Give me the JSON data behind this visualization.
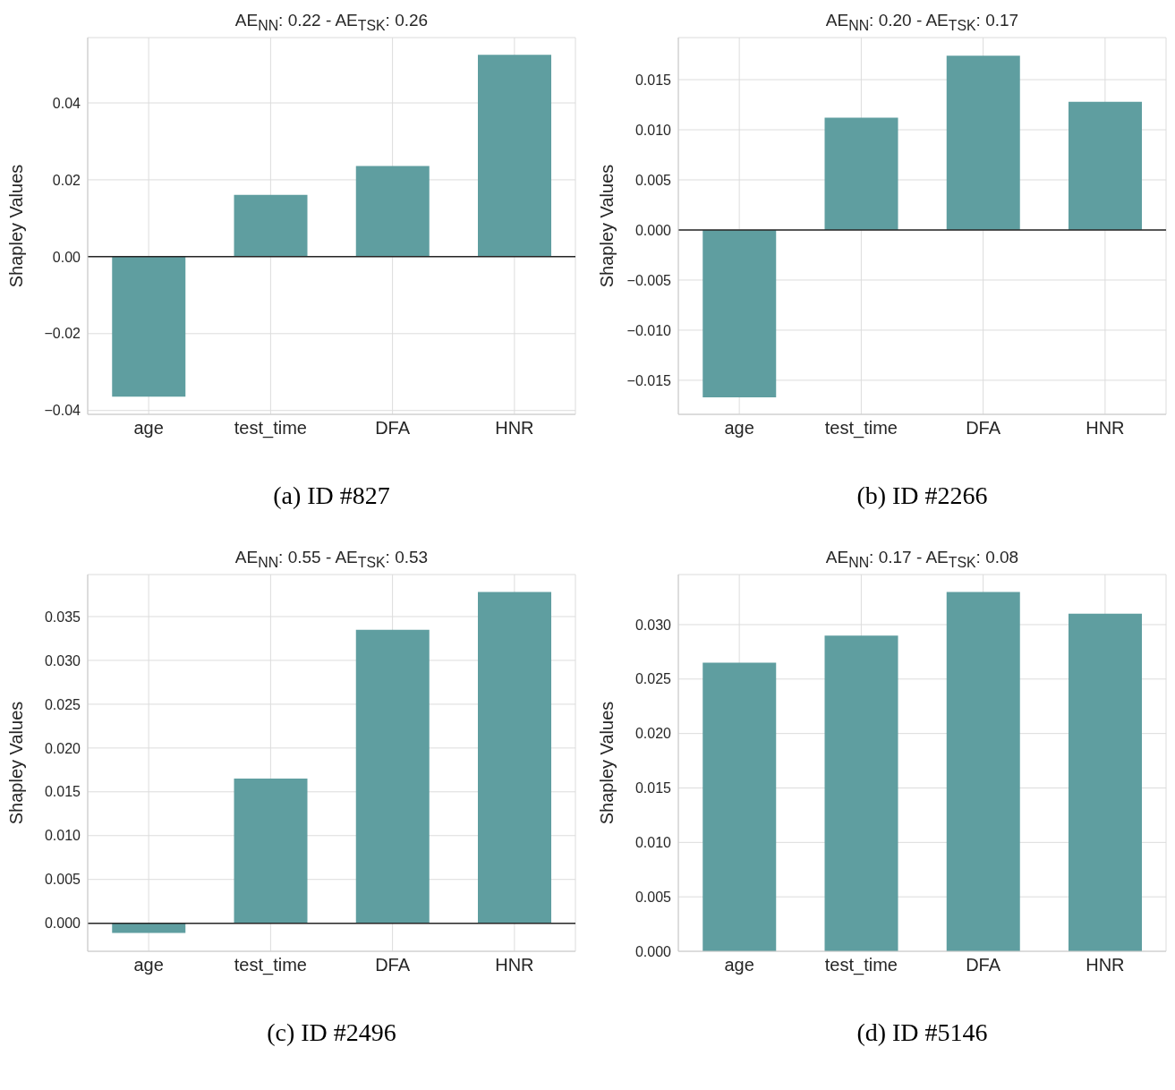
{
  "chart_data": [
    {
      "type": "bar",
      "title": "AE$_{NN}$: 0.22 - AE$_{TSK}$: 0.26",
      "ylabel": "Shapley Values",
      "annotations": [
        "(a) ID #827"
      ],
      "categories": [
        "age",
        "test_time",
        "DFA",
        "HNR"
      ],
      "values": [
        -0.0364,
        0.0161,
        0.0236,
        0.0525
      ],
      "color": "#5f9ea0",
      "ylim": [
        -0.041,
        0.057
      ],
      "yticks": [
        {
          "value": -0.04,
          "label": "−0.04"
        },
        {
          "value": -0.02,
          "label": "−0.02"
        },
        {
          "value": 0,
          "label": "0.00"
        },
        0.02,
        0.04
      ],
      "grid": true,
      "ref_lines": [
        {
          "axis": "y",
          "value": 0,
          "color": "#262626"
        }
      ]
    },
    {
      "type": "bar",
      "title": "AE$_{NN}$: 0.20 - AE$_{TSK}$: 0.17",
      "ylabel": "Shapley Values",
      "annotations": [
        "(b) ID #2266"
      ],
      "categories": [
        "age",
        "test_time",
        "DFA",
        "HNR"
      ],
      "values": [
        -0.0167,
        0.0112,
        0.0174,
        0.0128
      ],
      "color": "#5f9ea0",
      "ylim": [
        -0.0184,
        0.0192
      ],
      "yticks": [
        {
          "value": -0.015,
          "label": "−0.015"
        },
        {
          "value": -0.01,
          "label": "−0.010"
        },
        {
          "value": -0.005,
          "label": "−0.005"
        },
        {
          "value": 0,
          "label": "0.000"
        },
        0.005,
        {
          "value": 0.01,
          "label": "0.010"
        },
        0.015
      ],
      "grid": true,
      "ref_lines": [
        {
          "axis": "y",
          "value": 0,
          "color": "#262626"
        }
      ]
    },
    {
      "type": "bar",
      "title": "AE$_{NN}$: 0.55 - AE$_{TSK}$: 0.53",
      "ylabel": "Shapley Values",
      "annotations": [
        "(c) ID #2496"
      ],
      "categories": [
        "age",
        "test_time",
        "DFA",
        "HNR"
      ],
      "values": [
        -0.0011,
        0.0165,
        0.0335,
        0.0378
      ],
      "color": "#5f9ea0",
      "ylim": [
        -0.0032,
        0.0398
      ],
      "yticks": [
        {
          "value": 0,
          "label": "0.000"
        },
        0.005,
        {
          "value": 0.01,
          "label": "0.010"
        },
        0.015,
        {
          "value": 0.02,
          "label": "0.020"
        },
        0.025,
        {
          "value": 0.03,
          "label": "0.030"
        },
        0.035
      ],
      "grid": true,
      "ref_lines": [
        {
          "axis": "y",
          "value": 0,
          "color": "#262626"
        }
      ]
    },
    {
      "type": "bar",
      "title": "AE$_{NN}$: 0.17 - AE$_{TSK}$: 0.08",
      "ylabel": "Shapley Values",
      "annotations": [
        "(d) ID #5146"
      ],
      "categories": [
        "age",
        "test_time",
        "DFA",
        "HNR"
      ],
      "values": [
        0.0265,
        0.029,
        0.033,
        0.031
      ],
      "color": "#5f9ea0",
      "ylim": [
        0,
        0.0346
      ],
      "yticks": [
        {
          "value": 0,
          "label": "0.000"
        },
        0.005,
        {
          "value": 0.01,
          "label": "0.010"
        },
        0.015,
        {
          "value": 0.02,
          "label": "0.020"
        },
        0.025,
        {
          "value": 0.03,
          "label": "0.030"
        }
      ],
      "grid": true
    }
  ]
}
